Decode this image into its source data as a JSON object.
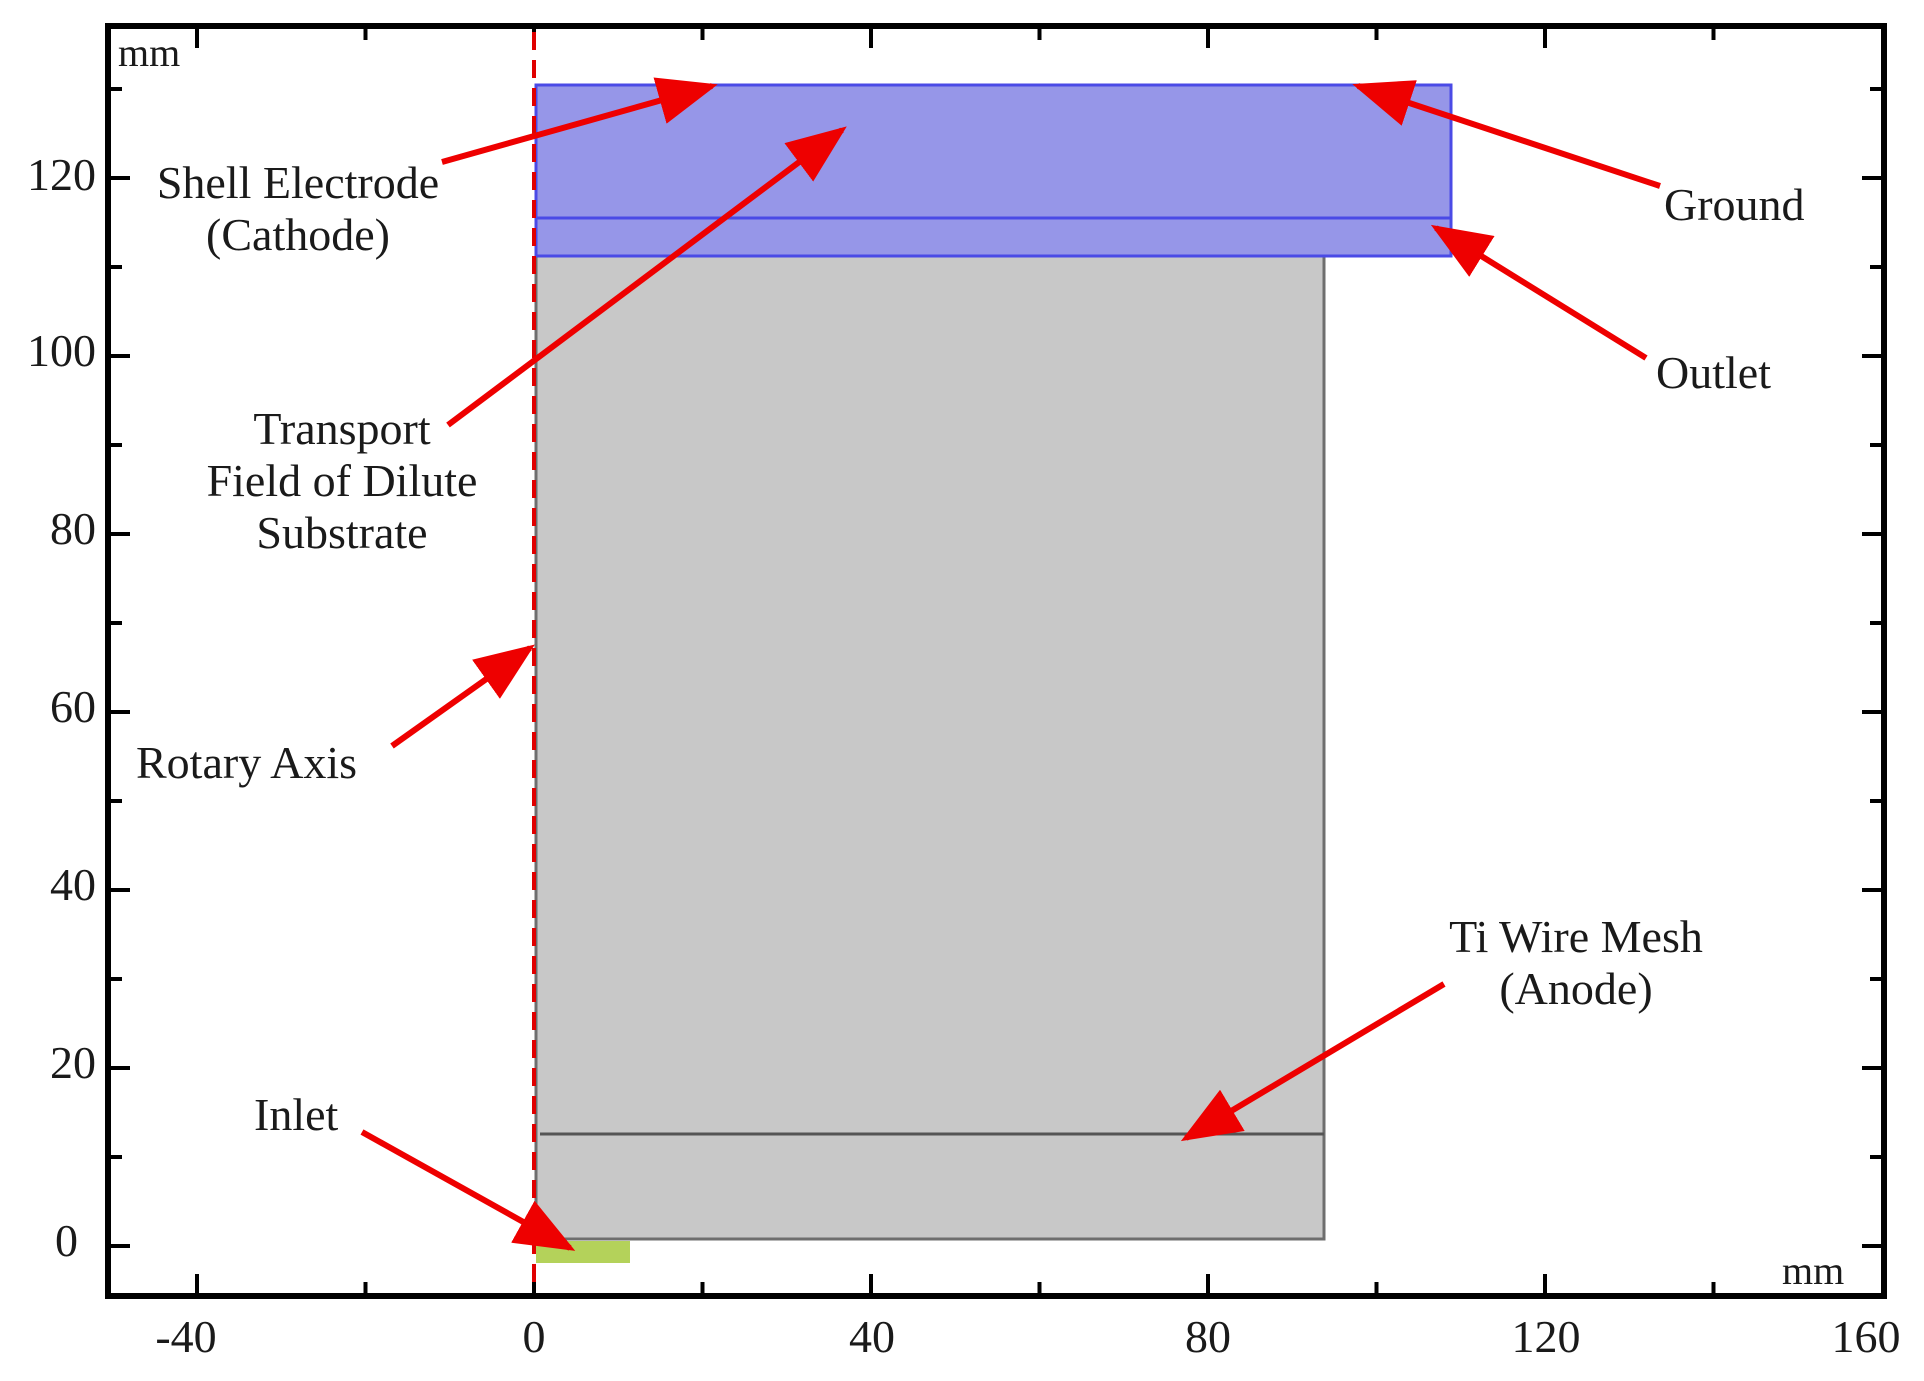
{
  "diagram": {
    "colors": {
      "frame": "#000000",
      "domain_fill": "#c8c8c8",
      "domain_stroke": "#6e6e6e",
      "electrode_fill": "#9696e8",
      "electrode_stroke": "#4a4ae6",
      "inlet_fill": "#b4d25a",
      "arrow": "#ee0000",
      "axis_line": "#e00000"
    },
    "units": {
      "x": "mm",
      "y": "mm"
    },
    "x_ticks": [
      "-40",
      "0",
      "40",
      "80",
      "120",
      "160"
    ],
    "y_ticks": [
      "0",
      "20",
      "40",
      "60",
      "80",
      "100",
      "120"
    ],
    "labels": {
      "shell_electrode": [
        "Shell Electrode",
        "(Cathode)"
      ],
      "transport_field": [
        "Transport",
        "Field of Dilute",
        "Substrate"
      ],
      "rotary_axis": "Rotary Axis",
      "inlet": "Inlet",
      "ground": "Ground",
      "outlet": "Outlet",
      "ti_wire_mesh": [
        "Ti Wire Mesh",
        "(Anode)"
      ]
    }
  }
}
